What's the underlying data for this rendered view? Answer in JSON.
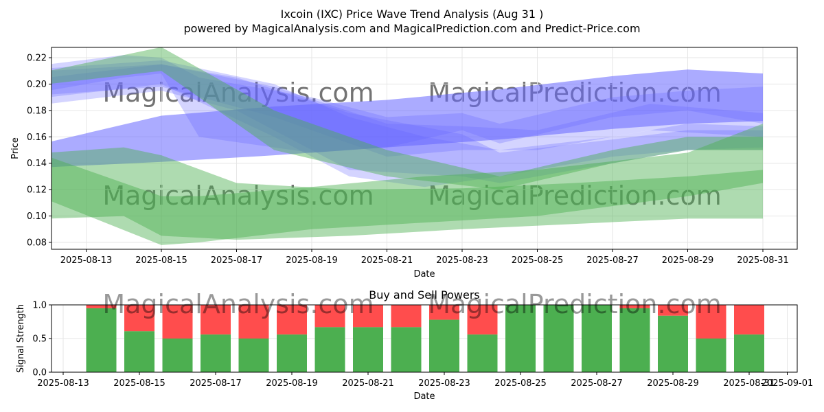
{
  "title": "Ixcoin (IXC) Price Wave Trend Analysis (Aug 31 )",
  "subtitle": "powered by MagicalAnalysis.com and MagicalPrediction.com and Predict-Price.com",
  "watermarks": [
    "MagicalAnalysis.com",
    "MagicalPrediction.com"
  ],
  "colors": {
    "buy": "#4caf50",
    "sell": "#ff4d4d",
    "blue_band": "#6666ff",
    "green_band": "#4caf50",
    "grid": "#e6e6e6",
    "watermark": "#dddddd"
  },
  "chart_data": [
    {
      "type": "area",
      "title": "",
      "xlabel": "Date",
      "ylabel": "Price",
      "xlim": [
        "2025-08-12",
        "2025-08-31"
      ],
      "ylim": [
        0.075,
        0.228
      ],
      "x_ticks": [
        "2025-08-13",
        "2025-08-15",
        "2025-08-17",
        "2025-08-19",
        "2025-08-21",
        "2025-08-23",
        "2025-08-25",
        "2025-08-27",
        "2025-08-29",
        "2025-08-31"
      ],
      "y_ticks": [
        "0.08",
        "0.10",
        "0.12",
        "0.14",
        "0.16",
        "0.18",
        "0.20",
        "0.22"
      ],
      "grid": true,
      "series": [
        {
          "color": "blue",
          "x": [
            "2025-08-12",
            "2025-08-15",
            "2025-08-18",
            "2025-08-21",
            "2025-08-24",
            "2025-08-27",
            "2025-08-29",
            "2025-08-31"
          ],
          "upper": [
            0.156,
            0.176,
            0.183,
            0.188,
            0.196,
            0.206,
            0.211,
            0.208
          ],
          "lower": [
            0.137,
            0.141,
            0.146,
            0.152,
            0.158,
            0.166,
            0.17,
            0.172
          ]
        },
        {
          "color": "blue",
          "x": [
            "2025-08-12",
            "2025-08-14",
            "2025-08-15",
            "2025-08-16",
            "2025-08-19",
            "2025-08-21",
            "2025-08-23",
            "2025-08-24",
            "2025-08-27",
            "2025-08-29",
            "2025-08-31"
          ],
          "upper": [
            0.215,
            0.222,
            0.22,
            0.205,
            0.19,
            0.175,
            0.178,
            0.17,
            0.19,
            0.195,
            0.198
          ],
          "lower": [
            0.195,
            0.205,
            0.208,
            0.16,
            0.148,
            0.152,
            0.165,
            0.155,
            0.175,
            0.18,
            0.17
          ]
        },
        {
          "color": "blue",
          "x": [
            "2025-08-12",
            "2025-08-15",
            "2025-08-18",
            "2025-08-20",
            "2025-08-22",
            "2025-08-24",
            "2025-08-27",
            "2025-08-29",
            "2025-08-31"
          ],
          "upper": [
            0.212,
            0.218,
            0.2,
            0.175,
            0.16,
            0.15,
            0.16,
            0.17,
            0.168
          ],
          "lower": [
            0.19,
            0.2,
            0.16,
            0.13,
            0.122,
            0.13,
            0.145,
            0.15,
            0.152
          ]
        },
        {
          "color": "blue",
          "x": [
            "2025-08-12",
            "2025-08-15",
            "2025-08-17",
            "2025-08-20",
            "2025-08-23",
            "2025-08-24",
            "2025-08-27",
            "2025-08-29",
            "2025-08-31"
          ],
          "upper": [
            0.205,
            0.215,
            0.205,
            0.178,
            0.162,
            0.148,
            0.158,
            0.165,
            0.165
          ],
          "lower": [
            0.185,
            0.195,
            0.18,
            0.135,
            0.13,
            0.125,
            0.14,
            0.15,
            0.15
          ]
        },
        {
          "color": "blue",
          "x": [
            "2025-08-12",
            "2025-08-15",
            "2025-08-18",
            "2025-08-21",
            "2025-08-23",
            "2025-08-25",
            "2025-08-28",
            "2025-08-31"
          ],
          "upper": [
            0.21,
            0.215,
            0.198,
            0.17,
            0.168,
            0.165,
            0.185,
            0.178
          ],
          "lower": [
            0.192,
            0.198,
            0.175,
            0.145,
            0.15,
            0.15,
            0.165,
            0.16
          ]
        },
        {
          "color": "green",
          "x": [
            "2025-08-12",
            "2025-08-14",
            "2025-08-15",
            "2025-08-17",
            "2025-08-20",
            "2025-08-23",
            "2025-08-26",
            "2025-08-29",
            "2025-08-31"
          ],
          "upper": [
            0.148,
            0.152,
            0.146,
            0.125,
            0.12,
            0.121,
            0.125,
            0.13,
            0.135
          ],
          "lower": [
            0.098,
            0.1,
            0.085,
            0.082,
            0.085,
            0.09,
            0.094,
            0.098,
            0.098
          ]
        },
        {
          "color": "green",
          "x": [
            "2025-08-12",
            "2025-08-15",
            "2025-08-16",
            "2025-08-19",
            "2025-08-22",
            "2025-08-25",
            "2025-08-29",
            "2025-08-31"
          ],
          "upper": [
            0.145,
            0.115,
            0.115,
            0.122,
            0.13,
            0.135,
            0.148,
            0.17
          ],
          "lower": [
            0.112,
            0.078,
            0.08,
            0.09,
            0.095,
            0.1,
            0.115,
            0.125
          ]
        },
        {
          "color": "green",
          "x": [
            "2025-08-12",
            "2025-08-15",
            "2025-08-18",
            "2025-08-21",
            "2025-08-24",
            "2025-08-27",
            "2025-08-29",
            "2025-08-31"
          ],
          "upper": [
            0.21,
            0.228,
            0.18,
            0.15,
            0.13,
            0.15,
            0.16,
            0.16
          ],
          "lower": [
            0.2,
            0.21,
            0.15,
            0.13,
            0.12,
            0.14,
            0.15,
            0.15
          ]
        }
      ]
    },
    {
      "type": "bar",
      "title": "Buy and Sell Powers",
      "xlabel": "Date",
      "ylabel": "Signal Strength",
      "xlim": [
        "2025-08-12",
        "2025-09-01"
      ],
      "ylim": [
        0,
        1.0
      ],
      "x_ticks": [
        "2025-08-13",
        "2025-08-15",
        "2025-08-17",
        "2025-08-19",
        "2025-08-21",
        "2025-08-23",
        "2025-08-25",
        "2025-08-27",
        "2025-08-29",
        "2025-08-31",
        "2025-09-01"
      ],
      "y_ticks": [
        "0.0",
        "0.5",
        "1.0"
      ],
      "grid": true,
      "categories": [
        "2025-08-14",
        "2025-08-15",
        "2025-08-16",
        "2025-08-17",
        "2025-08-18",
        "2025-08-19",
        "2025-08-20",
        "2025-08-21",
        "2025-08-22",
        "2025-08-23",
        "2025-08-24",
        "2025-08-25",
        "2025-08-26",
        "2025-08-27",
        "2025-08-28",
        "2025-08-29",
        "2025-08-30",
        "2025-08-31"
      ],
      "series": [
        {
          "values": [
            0.95,
            0.61,
            0.5,
            0.56,
            0.5,
            0.56,
            0.67,
            0.67,
            0.67,
            0.78,
            0.56,
            1.0,
            1.0,
            1.0,
            0.95,
            0.84,
            0.5,
            0.56
          ]
        },
        {
          "values": [
            0.05,
            0.39,
            0.5,
            0.44,
            0.5,
            0.44,
            0.33,
            0.33,
            0.33,
            0.22,
            0.44,
            0.0,
            0.0,
            0.0,
            0.05,
            0.16,
            0.5,
            0.44
          ]
        }
      ]
    }
  ]
}
